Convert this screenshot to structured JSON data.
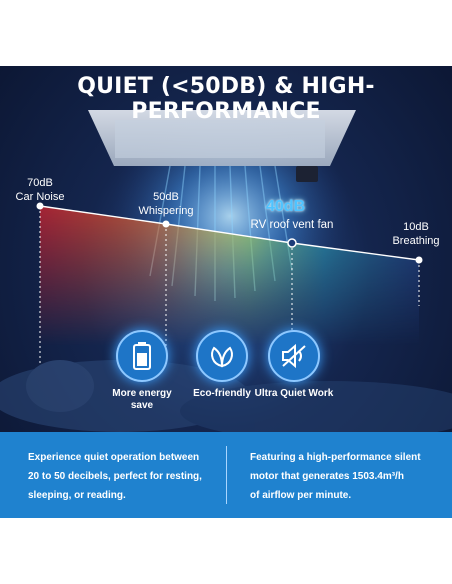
{
  "headline": "QUIET (<50DB) & HIGH-PERFORMANCE",
  "levels": {
    "car": {
      "db": "70dB",
      "label": "Car Noise"
    },
    "whisper": {
      "db": "50dB",
      "label": "Whispering"
    },
    "fan": {
      "db": "40dB",
      "label": "RV roof vent  fan"
    },
    "breath": {
      "db": "10dB",
      "label": "Breathing"
    }
  },
  "features": [
    {
      "icon": "battery-icon",
      "label": "More energy save"
    },
    {
      "icon": "leaf-icon",
      "label": "Eco-friendly"
    },
    {
      "icon": "mute-icon",
      "label": "Ultra Quiet Work"
    }
  ],
  "bottom": {
    "left_lines": [
      "Experience quiet operation between",
      "20 to 50 decibels, perfect for resting,",
      "sleeping, or reading."
    ],
    "right_lines": [
      "Featuring a high-performance silent",
      "motor that generates 1503.4m³/h",
      "of airflow per minute."
    ]
  },
  "colors": {
    "accent": "#1f82cf",
    "highlight": "#4fc3ff",
    "background": "#14254d"
  }
}
